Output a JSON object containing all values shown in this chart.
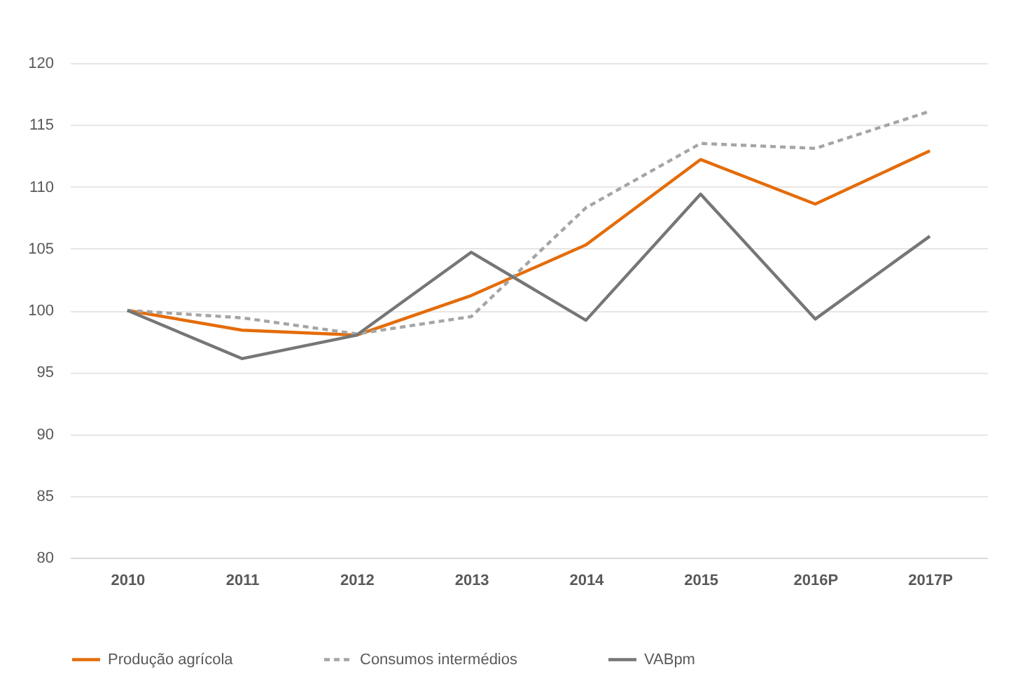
{
  "chart_data": {
    "type": "line",
    "categories": [
      "2010",
      "2011",
      "2012",
      "2013",
      "2014",
      "2015",
      "2016P",
      "2017P"
    ],
    "series": [
      {
        "name": "Produção agrícola",
        "color": "#e46c0a",
        "line_style": "solid",
        "values": [
          100,
          98.4,
          98.0,
          101.2,
          105.3,
          112.2,
          108.6,
          112.9
        ]
      },
      {
        "name": "Consumos intermédios",
        "color": "#a5a5a5",
        "line_style": "dashed",
        "values": [
          100,
          99.4,
          98.1,
          99.5,
          108.3,
          113.5,
          113.1,
          116.1
        ]
      },
      {
        "name": "VABpm",
        "color": "#767676",
        "line_style": "solid",
        "values": [
          100,
          96.1,
          98.0,
          104.7,
          99.2,
          109.4,
          99.3,
          106.0
        ]
      }
    ],
    "ylim": [
      80,
      120
    ],
    "yticks": [
      80,
      85,
      90,
      95,
      100,
      105,
      110,
      115,
      120
    ],
    "grid": "y",
    "legend": "bottom",
    "marker": "none"
  }
}
